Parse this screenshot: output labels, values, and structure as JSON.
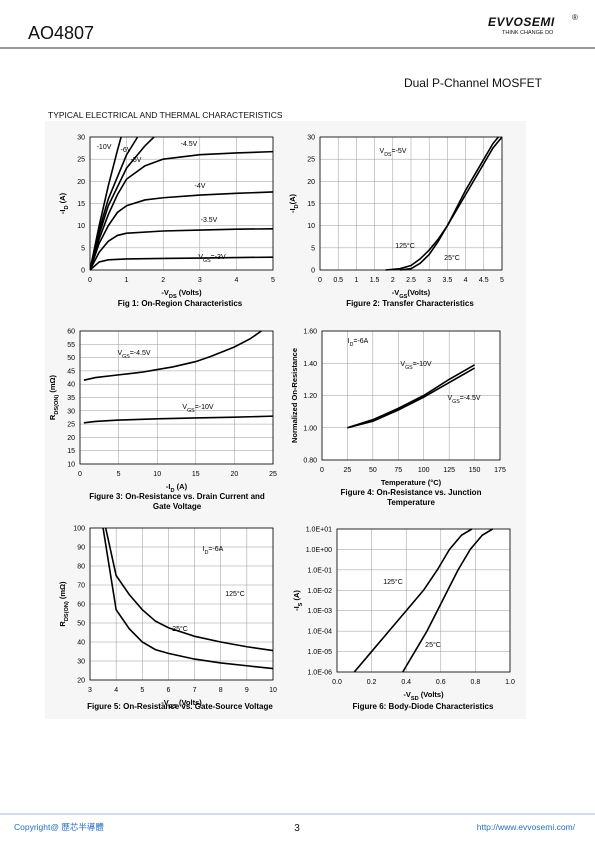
{
  "header": {
    "part": "AO4807",
    "brand": "EVVOSEMI",
    "reg": "®",
    "slogan": "THINK CHANGE DO",
    "product": "Dual P-Channel MOSFET"
  },
  "section": "TYPICAL ELECTRICAL AND THERMAL CHARACTERISTICS",
  "footer": {
    "copyright": "Copyright@ 歷芯半導體",
    "page": "3",
    "url": "http://www.evvosemi.com/"
  },
  "chart_data": [
    {
      "type": "line",
      "caption": [
        "Fig 1: On-Region Characteristics"
      ],
      "xlabel": [
        "-V",
        "DS",
        " (Volts)"
      ],
      "ylabel": [
        "-I",
        "D",
        " (A)"
      ],
      "xlim": [
        0,
        5
      ],
      "xticks": [
        0,
        1,
        2,
        3,
        4,
        5
      ],
      "ylim": [
        0,
        30
      ],
      "yticks": [
        0,
        5,
        10,
        15,
        20,
        25,
        30
      ],
      "grid": true,
      "series": [
        {
          "color": "#000000",
          "x": [
            0,
            0.25,
            0.5,
            0.75,
            0.85
          ],
          "values": [
            0,
            10,
            19,
            27,
            30
          ]
        },
        {
          "color": "#000000",
          "x": [
            0,
            0.25,
            0.5,
            1,
            1.3
          ],
          "values": [
            0,
            9,
            16,
            26,
            30
          ]
        },
        {
          "color": "#000000",
          "x": [
            0,
            0.25,
            0.5,
            1,
            1.5,
            1.75
          ],
          "values": [
            0,
            8,
            14.5,
            23,
            28,
            30
          ]
        },
        {
          "color": "#000000",
          "x": [
            0,
            0.25,
            0.5,
            0.75,
            1,
            1.5,
            2,
            3,
            4,
            5
          ],
          "values": [
            0,
            7,
            12.5,
            17,
            20.5,
            23.5,
            25,
            26,
            26.4,
            26.7
          ]
        },
        {
          "color": "#000000",
          "x": [
            0,
            0.25,
            0.5,
            0.75,
            1,
            1.5,
            2,
            3,
            4,
            5
          ],
          "values": [
            0,
            6,
            10,
            13,
            14.5,
            15.8,
            16.3,
            16.9,
            17.3,
            17.6
          ]
        },
        {
          "color": "#000000",
          "x": [
            0,
            0.25,
            0.5,
            0.75,
            1,
            2,
            3,
            4,
            5
          ],
          "values": [
            0,
            4,
            6.5,
            7.8,
            8.3,
            8.8,
            9,
            9.2,
            9.3
          ]
        },
        {
          "color": "#000000",
          "x": [
            0,
            0.25,
            0.5,
            1,
            2,
            3,
            4,
            5
          ],
          "values": [
            0,
            1.8,
            2.3,
            2.5,
            2.6,
            2.7,
            2.8,
            2.9
          ]
        }
      ],
      "annotations": [
        [
          "-10V"
        ],
        [
          "-6V"
        ],
        [
          "-5V"
        ],
        [
          "-4.5V"
        ],
        [
          "-4V"
        ],
        [
          "-3.5V"
        ],
        [
          "V",
          "GS",
          "=-3V"
        ]
      ]
    },
    {
      "type": "line",
      "caption": [
        "Figure 2: Transfer Characteristics"
      ],
      "xlabel": [
        "-V",
        "GS",
        "(Volts)"
      ],
      "ylabel": [
        "-I",
        "D",
        "(A)"
      ],
      "xlim": [
        0,
        5
      ],
      "xticks": [
        0,
        0.5,
        1,
        1.5,
        2,
        2.5,
        3,
        3.5,
        4,
        4.5,
        5
      ],
      "ylim": [
        0,
        30
      ],
      "yticks": [
        0,
        5,
        10,
        15,
        20,
        25,
        30
      ],
      "grid": true,
      "series": [
        {
          "color": "#000000",
          "x": [
            1.8,
            2.2,
            2.5,
            2.75,
            3,
            3.25,
            3.5,
            3.75,
            4,
            4.25,
            4.5,
            4.75,
            5
          ],
          "values": [
            0,
            0.3,
            1,
            2.5,
            4.5,
            7,
            10,
            13.5,
            17,
            20.5,
            24,
            27.5,
            30
          ]
        },
        {
          "color": "#000000",
          "x": [
            2.2,
            2.5,
            2.75,
            3,
            3.25,
            3.5,
            3.75,
            4,
            4.25,
            4.5,
            4.75,
            4.9
          ],
          "values": [
            0,
            0.3,
            1.5,
            3.5,
            6.5,
            10,
            14,
            18,
            21.5,
            25,
            28.5,
            30
          ]
        }
      ],
      "annotations": [
        [
          "V",
          "DS",
          "=-5V"
        ],
        [
          "125°C"
        ],
        [
          "25°C"
        ]
      ]
    },
    {
      "type": "line",
      "caption": [
        "Figure 3: On-Resistance vs. Drain Current and",
        "Gate Voltage"
      ],
      "xlabel": [
        "-I",
        "D",
        " (A)"
      ],
      "ylabel": [
        "R",
        "DS(ON)",
        " (mΩ)"
      ],
      "xlim": [
        0,
        25
      ],
      "xticks": [
        0,
        5,
        10,
        15,
        20,
        25
      ],
      "ylim": [
        10,
        60
      ],
      "yticks": [
        10,
        15,
        20,
        25,
        30,
        35,
        40,
        45,
        50,
        55,
        60
      ],
      "grid": true,
      "series": [
        {
          "color": "#000000",
          "x": [
            0.5,
            2,
            5,
            8,
            10,
            12,
            15,
            17,
            20,
            22,
            23.5
          ],
          "values": [
            41.5,
            42.5,
            43.5,
            44.5,
            45.5,
            46.5,
            48.5,
            50.5,
            54,
            57,
            60
          ]
        },
        {
          "color": "#000000",
          "x": [
            0.5,
            2,
            5,
            10,
            15,
            20,
            25
          ],
          "values": [
            25.5,
            26,
            26.5,
            27,
            27.3,
            27.6,
            28
          ]
        }
      ],
      "annotations": [
        [
          "V",
          "GS",
          "=-4.5V"
        ],
        [
          "V",
          "GS",
          "=-10V"
        ]
      ]
    },
    {
      "type": "line",
      "caption": [
        "Figure 4: On-Resistance vs. Junction",
        "Temperature"
      ],
      "xlabel": [
        "Temperature (°C)"
      ],
      "ylabel": [
        "Normalized On-Resistance"
      ],
      "xlim": [
        0,
        175
      ],
      "xticks": [
        0,
        25,
        50,
        75,
        100,
        125,
        150,
        175
      ],
      "ylim": [
        0.8,
        1.6
      ],
      "yticks": [
        {
          "value": 0.8,
          "label": "0.80"
        },
        {
          "value": 1.0,
          "label": "1.00"
        },
        {
          "value": 1.2,
          "label": "1.20"
        },
        {
          "value": 1.4,
          "label": "1.40"
        },
        {
          "value": 1.6,
          "label": "1.60"
        }
      ],
      "grid": true,
      "series": [
        {
          "color": "#000000",
          "x": [
            25,
            50,
            75,
            100,
            125,
            150
          ],
          "values": [
            1,
            1.05,
            1.12,
            1.2,
            1.3,
            1.39
          ]
        },
        {
          "color": "#000000",
          "x": [
            25,
            50,
            75,
            100,
            125,
            150
          ],
          "values": [
            1,
            1.04,
            1.11,
            1.19,
            1.28,
            1.37
          ]
        }
      ],
      "annotations": [
        [
          "I",
          "D",
          "=-6A"
        ],
        [
          "V",
          "GS",
          "=-10V"
        ],
        [
          "V",
          "GS",
          "=-4.5V"
        ]
      ]
    },
    {
      "type": "line",
      "caption": [
        "Figure 5: On-Resistance vs. Gate-Source Voltage"
      ],
      "xlabel": [
        "-V",
        "GS",
        " (Volts)"
      ],
      "ylabel": [
        "R",
        "DS(ON)",
        " (mΩ)"
      ],
      "xlim": [
        3,
        10
      ],
      "xticks": [
        3,
        4,
        5,
        6,
        7,
        8,
        9,
        10
      ],
      "ylim": [
        20,
        100
      ],
      "yticks": [
        20,
        30,
        40,
        50,
        60,
        70,
        80,
        90,
        100
      ],
      "grid": true,
      "series": [
        {
          "color": "#000000",
          "x": [
            3.6,
            4,
            4.5,
            5,
            5.5,
            6,
            7,
            8,
            9,
            10
          ],
          "values": [
            100,
            75,
            65,
            57,
            51,
            47.5,
            43,
            40,
            37.5,
            35.5
          ]
        },
        {
          "color": "#000000",
          "x": [
            3.5,
            4,
            4.5,
            5,
            5.5,
            6,
            7,
            8,
            9,
            10
          ],
          "values": [
            100,
            57,
            47,
            40,
            36,
            34,
            31,
            29,
            27.5,
            26
          ]
        }
      ],
      "annotations": [
        [
          "I",
          "D",
          "=-6A"
        ],
        [
          "125°C"
        ],
        [
          "25°C"
        ]
      ]
    },
    {
      "type": "line",
      "caption": [
        "Figure 6: Body-Diode Characteristics"
      ],
      "xlabel": [
        "-V",
        "SD",
        " (Volts)"
      ],
      "ylabel": [
        "-I",
        "S",
        " (A)"
      ],
      "ylog": true,
      "xlim": [
        0,
        1
      ],
      "xticks": [
        {
          "value": 0,
          "label": "0.0"
        },
        {
          "value": 0.2,
          "label": "0.2"
        },
        {
          "value": 0.4,
          "label": "0.4"
        },
        {
          "value": 0.6,
          "label": "0.6"
        },
        {
          "value": 0.8,
          "label": "0.8"
        },
        {
          "value": 1,
          "label": "1.0"
        }
      ],
      "ylim": [
        1e-06,
        10
      ],
      "yticks": [
        {
          "value": 1e-06,
          "label": "1.0E-06"
        },
        {
          "value": 1e-05,
          "label": "1.0E-05"
        },
        {
          "value": 0.0001,
          "label": "1.0E-04"
        },
        {
          "value": 0.001,
          "label": "1.0E-03"
        },
        {
          "value": 0.01,
          "label": "1.0E-02"
        },
        {
          "value": 0.1,
          "label": "1.0E-01"
        },
        {
          "value": 1,
          "label": "1.0E+00"
        },
        {
          "value": 10,
          "label": "1.0E+01"
        }
      ],
      "grid": true,
      "series": [
        {
          "color": "#000000",
          "x": [
            0.1,
            0.2,
            0.3,
            0.4,
            0.5,
            0.58,
            0.65,
            0.72,
            0.78
          ],
          "values": [
            1e-06,
            1e-05,
            0.0001,
            0.001,
            0.01,
            0.1,
            1,
            5,
            10
          ]
        },
        {
          "color": "#000000",
          "x": [
            0.38,
            0.45,
            0.52,
            0.58,
            0.64,
            0.7,
            0.77,
            0.84,
            0.9
          ],
          "values": [
            1e-06,
            1e-05,
            0.0001,
            0.001,
            0.01,
            0.1,
            1,
            5,
            10
          ]
        }
      ],
      "annotations": [
        [
          "125°C"
        ],
        [
          "25°C"
        ]
      ]
    }
  ]
}
